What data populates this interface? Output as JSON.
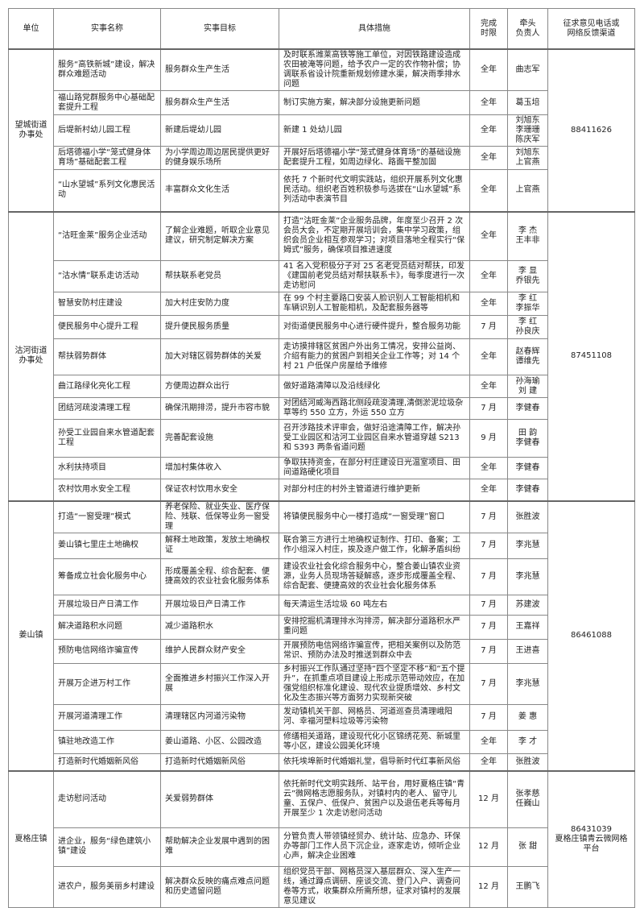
{
  "headers": [
    "单位",
    "实事名称",
    "实事目标",
    "具体措施",
    "完成\n时限",
    "牵头\n负责人",
    "征求意见电话或\n网络反馈渠道"
  ],
  "groups": [
    {
      "unit": "望城街道\n办事处",
      "channel": "88411626",
      "rows": [
        {
          "name": "服务“高铁新城”建设，解决群众难题活动",
          "goal": "服务群众生产生活",
          "measure": "及时联系潍莱高铁等施工单位，对因铁路建设造成农田被淹等问题，给予农户一定的农作物补偿；协调联系省设计院重新规划修建水渠，解决雨季排水问题",
          "deadline": "全年",
          "lead": "曲志军"
        },
        {
          "name": "福山路党群服务中心基础配套提升工程",
          "goal": "服务群众生产生活",
          "measure": "制订实施方案，解决部分设施更新问题",
          "deadline": "全年",
          "lead": "葛玉培"
        },
        {
          "name": "后堤新村幼儿园工程",
          "goal": "新建后堤幼儿园",
          "measure": "新建 1 处幼儿园",
          "deadline": "全年",
          "lead": "刘旭东\n李珊珊\n陈庆军"
        },
        {
          "name": "后塔德福小学“笼式健身体育场”基础配套工程",
          "goal": "为小学周边周边居民提供更好的健身娱乐场所",
          "measure": "开展好后塔德福小学“笼式健身体育场”的基础设施配套提升工程，如周边绿化、路面平整加固",
          "deadline": "全年",
          "lead": "刘旭东\n上官燕"
        },
        {
          "name": "“山水望城”系列文化惠民活动",
          "goal": "丰富群众文化生活",
          "measure": "依托 7 个新时代文明实践站，组织开展系列文化惠民活动。组织老百姓积极参与选拔在“山水望城”系列活动中表演节目",
          "deadline": "全年",
          "lead": "上官燕"
        }
      ]
    },
    {
      "unit": "沽河街道\n办事处",
      "channel": "87451108",
      "rows": [
        {
          "name": "“沽旺金莱”服务企业活动",
          "goal": "了解企业难题，听取企业意见建议，研究制定解决方案",
          "measure": "打造“沽旺金莱”企业服务品牌，年度至少召开 2 次会员大会，不定期开展培训会，集中学习政策，组织会员企业相互参观学习；对项目落地全程实行“保姆式”服务，确保项目推进速度",
          "deadline": "全年",
          "lead": "李 杰\n王丰非"
        },
        {
          "name": "“沽水情”联系走访活动",
          "goal": "帮扶联系老党员",
          "measure": "41 名入党积极分子对 25 名老党员结对帮扶，印发《建国前老党员结对帮扶联系卡》，每季度进行一次走访慰问",
          "deadline": "全年",
          "lead": "李 显\n乔银先"
        },
        {
          "name": "智慧安防村庄建设",
          "goal": "加大村庄安防力度",
          "measure": "在 99 个村主要路口安装人脸识别人工智能相机和车辆识别人工智能相机，及配套服务器等",
          "deadline": "全年",
          "lead": "李 红\n李振华"
        },
        {
          "name": "便民服务中心提升工程",
          "goal": "提升便民服务质量",
          "measure": "对街道便民服务中心进行硬件提升，整合服务功能",
          "deadline": "7 月",
          "lead": "李 红\n孙良庆"
        },
        {
          "name": "帮扶弱势群体",
          "goal": "加大对辖区弱势群体的关爱",
          "measure": "走访摸排辖区贫困户外出务工情况，安排公益岗、介绍有能力的贫困户到相关企业工作等；对 14 个村 21 户低保户房屋给予维修",
          "deadline": "全年",
          "lead": "赵春辉\n谭维先"
        },
        {
          "name": "曲江路绿化亮化工程",
          "goal": "方便周边群众出行",
          "measure": "做好道路清障以及沿线绿化",
          "deadline": "全年",
          "lead": "孙海瑜\n刘 建"
        },
        {
          "name": "团结河疏浚清理工程",
          "goal": "确保汛期排涝，提升市容市貌",
          "measure": "对团结河威海西路北侧段疏浚清理,清倒淤泥垃圾杂草等约 550 立方，外运 550 立方",
          "deadline": "7 月",
          "lead": "李健春"
        },
        {
          "name": "孙受工业园自来水管道配套工程",
          "goal": "完善配套设施",
          "measure": "召开涉路技术评审会，做好沿途清障工作，解决孙受工业园区和沽河工业园区自来水管道穿越 S213 和 S393 两条省道问题",
          "deadline": "9 月",
          "lead": "田 韵\n李健春"
        },
        {
          "name": "水利扶持项目",
          "goal": "增加村集体收入",
          "measure": "争取扶持资金，在部分村庄建设日光温室项目、田间道路硬化项目",
          "deadline": "全年",
          "lead": "李健春"
        },
        {
          "name": "农村饮用水安全工程",
          "goal": "保证农村饮用水安全",
          "measure": "对部分村庄的村外主管道进行维护更新",
          "deadline": "全年",
          "lead": "李健春"
        }
      ]
    },
    {
      "unit": "姜山镇",
      "channel": "86461088",
      "rows": [
        {
          "name": "打造“一窗受理”模式",
          "goal": "养老保险、就业失业、医疗保险、残联、低保等业务一窗受理",
          "measure": "将镇便民服务中心一楼打造成“一窗受理”窗口",
          "deadline": "7 月",
          "lead": "张胜波"
        },
        {
          "name": "姜山镇七里庄土地确权",
          "goal": "解释土地政策，发放土地确权证",
          "measure": "联合第三方进行土地确权证制作、打印、备案；工作小组深入村庄，挨及逐户做工作，化解矛盾纠纷",
          "deadline": "7 月",
          "lead": "李兆慧"
        },
        {
          "name": "筹备成立社会化服务中心",
          "goal": "形成覆盖全程、综合配套、便捷高效的农业社会化服务体系",
          "measure": "建设农业社会化综合服务中心，整合姜山镇农业资源，业务人员现场答疑解惑，逐步形成覆盖全程、综合配套、便捷高效的农业社会化服务体系",
          "deadline": "7 月",
          "lead": "李兆慧"
        },
        {
          "name": "开展垃圾日产日清工作",
          "goal": "开展垃圾日产日清工作",
          "measure": "每天清运生活垃圾 60 吨左右",
          "deadline": "7 月",
          "lead": "苏建波"
        },
        {
          "name": "解决道路积水问题",
          "goal": "减少道路积水",
          "measure": "安排挖掘机清理排水沟排涝，解决部分道路积水严重问题",
          "deadline": "7 月",
          "lead": "王嘉祥"
        },
        {
          "name": "预防电信网络诈骗宣传",
          "goal": "维护人民群众财产安全",
          "measure": "开展预防电信网络诈骗宣传，把相关案例以及防范常识、预防办法及时推送到群众中去",
          "deadline": "7 月",
          "lead": "王进喜"
        },
        {
          "name": "开展万企进万村工作",
          "goal": "全面推进乡村振兴工作深入开展",
          "measure": "乡村振兴工作队通过坚持“四个坚定不移”和“五个提升”，在抓重点项目建设上形成示范带动效应，在加强党组织标准化建设、现代农业提质增效、乡村文化及生态振兴等方面努力实现新突破",
          "deadline": "7 月",
          "lead": "李兆慧"
        },
        {
          "name": "开展河道清理工作",
          "goal": "清理辖区内河道污染物",
          "measure": "发动镇机关干部、网格员、河道巡查员清理峨阳河、幸福河塑料垃圾等污染物",
          "deadline": "7 月",
          "lead": "姜 惠"
        },
        {
          "name": "镇驻地改造工作",
          "goal": "姜山道路、小区、公园改造",
          "measure": "修缮相关道路，建设现代化小区锦绣花苑、新城里等小区，建设公园美化环境",
          "deadline": "全年",
          "lead": "李 才"
        },
        {
          "name": "打造新时代婚姻新风俗",
          "goal": "打造新时代婚姻新风俗",
          "measure": "依托埃埠新时代婚姻礼堂，倡导新时代红事新风俗",
          "deadline": "全年",
          "lead": "张胜波"
        }
      ]
    },
    {
      "unit": "夏格庄镇",
      "channel": "86431039\n夏格庄镇青云微网格平台",
      "rows": [
        {
          "name": "走访慰问活动",
          "goal": "关爱弱势群体",
          "measure": "依托新时代文明实践所、站平台，用好夏格庄镇“青云”微网格志愿服务队，对镇村内的老人、留守儿童、五保户、低保户、贫困户以及退伍老兵等每月开展至少 1 次走访慰问活动",
          "deadline": "12 月",
          "lead": "张孝慈\n任巍山"
        },
        {
          "name": "进企业，服务“绿色建筑小镇”建设",
          "goal": "帮助解决企业发展中遇到的困难",
          "measure": "分管负责人带领镇经贸办、统计站、应急办、环保办等部门工作人员下沉企业，逐家走访，倾听企业心声，解决企业困难",
          "deadline": "12 月",
          "lead": "张 甜"
        },
        {
          "name": "进农户，服务美丽乡村建设",
          "goal": "解决群众反映的痛点难点问题和历史遗留问题",
          "measure": "组织党员干部、网格员深入基层群众、深入生产一线，通过蹲点调研、座谈交流、登门入户、调查问卷等方式，收集群众所需所想，征求对镇村的发展意见建议",
          "deadline": "12 月",
          "lead": "王鹏飞"
        }
      ]
    }
  ]
}
